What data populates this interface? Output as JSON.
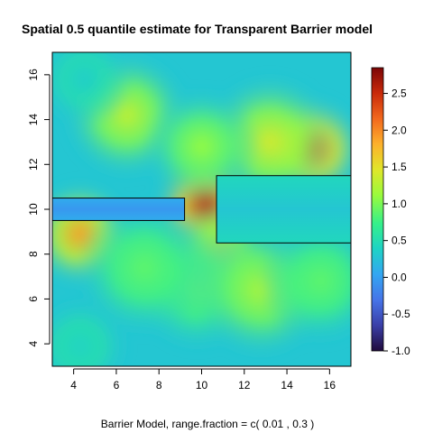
{
  "chart_data": {
    "type": "heatmap",
    "title": "Spatial 0.5 quantile estimate for Transparent Barrier model",
    "xlabel": "Barrier Model, range.fraction = c( 0.01 ,  0.3 )",
    "ylabel": "",
    "xlim": [
      3,
      17
    ],
    "ylim": [
      3,
      17
    ],
    "x_ticks": [
      "4",
      "6",
      "8",
      "10",
      "12",
      "14",
      "16"
    ],
    "y_ticks": [
      "4",
      "6",
      "8",
      "10",
      "12",
      "14",
      "16"
    ],
    "colorbar": {
      "range": [
        -1.0,
        2.85
      ],
      "ticks": [
        "-1.0",
        "-0.5",
        "0.0",
        "0.5",
        "1.0",
        "1.5",
        "2.0",
        "2.5"
      ],
      "palette": [
        "#200a3c",
        "#3a3fa8",
        "#4674e8",
        "#33a6f2",
        "#1ed3c5",
        "#35f08a",
        "#9afb3c",
        "#e0e62a",
        "#fdb12c",
        "#f2681d",
        "#c92a0a",
        "#7c0506"
      ]
    },
    "background_value": 0.3,
    "hotspots": [
      {
        "x": 10.2,
        "y": 10.2,
        "value": 2.55,
        "radius": 1.1
      },
      {
        "x": 15.2,
        "y": 12.7,
        "value": 2.2,
        "radius": 1.1
      },
      {
        "x": 4.3,
        "y": 8.9,
        "value": 1.9,
        "radius": 1.1
      },
      {
        "x": 10.8,
        "y": 8.0,
        "value": 1.5,
        "radius": 1.1
      },
      {
        "x": 9.8,
        "y": 6.5,
        "value": 0.9,
        "radius": 1.3
      },
      {
        "x": 6.5,
        "y": 14.2,
        "value": 1.3,
        "radius": 1.3
      },
      {
        "x": 13.2,
        "y": 13.0,
        "value": 1.4,
        "radius": 1.4
      },
      {
        "x": 10.0,
        "y": 12.8,
        "value": 1.1,
        "radius": 1.2
      },
      {
        "x": 12.8,
        "y": 6.4,
        "value": 1.2,
        "radius": 1.4
      },
      {
        "x": 15.6,
        "y": 6.8,
        "value": 0.9,
        "radius": 1.3
      },
      {
        "x": 7.3,
        "y": 7.4,
        "value": 0.9,
        "radius": 1.4
      },
      {
        "x": 4.5,
        "y": 15.8,
        "value": 0.35,
        "radius": 1.0
      },
      {
        "x": 4.3,
        "y": 3.9,
        "value": 0.4,
        "radius": 1.0
      }
    ],
    "barriers": [
      {
        "x0": 3.0,
        "x1": 9.2,
        "y0": 9.5,
        "y1": 10.5,
        "fill_value": -0.05
      },
      {
        "x0": 10.7,
        "x1": 17.0,
        "y0": 8.5,
        "y1": 11.5,
        "fill_value": 0.3
      }
    ]
  }
}
